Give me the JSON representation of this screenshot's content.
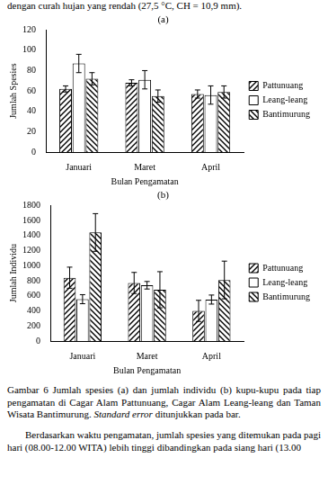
{
  "page": {
    "top_text": "dengan curah hujan yang rendah (27,5 °C, CH = 10,9 mm).",
    "caption": {
      "before": "Gambar 6 Jumlah spesies (a) dan jumlah individu (b) kupu-kupu pada tiap pengamatan di Cagar Alam Pattunuang, Cagar Alam Leang-leang dan Taman Wisata Bantimurung.",
      "italic": "Standard error",
      "after": "ditunjukkan pada bar."
    },
    "paragraph": "Berdasarkan waktu pengamatan, jumlah spesies yang ditemukan pada pagi hari (08.00-12.00 WITA) lebih tinggi dibandingkan pada siang hari (13.00"
  },
  "chart_data": [
    {
      "type": "bar",
      "title": "(a)",
      "x_label": "Bulan Pengamatan",
      "y_label": "Jumlah Spesies",
      "categories": [
        "Januari",
        "Maret",
        "April"
      ],
      "series": [
        {
          "name": "Pattunuang",
          "color": "#000000",
          "values": [
            62,
            68,
            57
          ],
          "errors": [
            3,
            3,
            4
          ]
        },
        {
          "name": "Leang-leang",
          "color": "#ffffff",
          "values": [
            87,
            71,
            56
          ],
          "errors": [
            9,
            9,
            9
          ]
        },
        {
          "name": "Bantimurung",
          "color": "#000000",
          "values": [
            72,
            55,
            59
          ],
          "errors": [
            6,
            6,
            6
          ]
        }
      ],
      "ylim": [
        0,
        120
      ],
      "yticks": [
        0,
        20,
        40,
        60,
        80,
        100,
        120
      ],
      "grid": false,
      "legend": "right"
    },
    {
      "type": "bar",
      "title": "(b)",
      "x_label": "Bulan Pengamatan",
      "y_label": "Jumlah Individu",
      "categories": [
        "Januari",
        "Maret",
        "April"
      ],
      "series": [
        {
          "name": "Pattunuang",
          "color": "#000000",
          "values": [
            840,
            770,
            400
          ],
          "errors": [
            140,
            140,
            140
          ]
        },
        {
          "name": "Leang-leang",
          "color": "#ffffff",
          "values": [
            555,
            740,
            550
          ],
          "errors": [
            60,
            50,
            60
          ]
        },
        {
          "name": "Bantimurung",
          "color": "#000000",
          "values": [
            1440,
            680,
            810
          ],
          "errors": [
            250,
            240,
            250
          ]
        }
      ],
      "ylim": [
        0,
        1800
      ],
      "yticks": [
        0,
        200,
        400,
        600,
        800,
        1000,
        1200,
        1400,
        1600,
        1800
      ],
      "grid": false,
      "legend": "right"
    }
  ]
}
